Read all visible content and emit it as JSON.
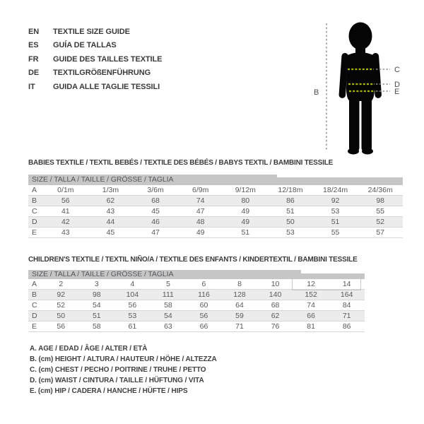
{
  "languages": [
    {
      "code": "EN",
      "label": "TEXTILE SIZE GUIDE"
    },
    {
      "code": "ES",
      "label": "GUÍA DE TALLAS"
    },
    {
      "code": "FR",
      "label": "GUIDE DES TAILLES TEXTILE"
    },
    {
      "code": "DE",
      "label": "TEXTILGRÖßENFÜHRUNG"
    },
    {
      "code": "IT",
      "label": "GUIDA ALLE TAGLIE TESSILI"
    }
  ],
  "figure": {
    "labels": {
      "height": "B",
      "chest": "C",
      "waist": "D",
      "hip": "E"
    },
    "colors": {
      "silhouette": "#050505",
      "measure_dash": "#a9b509",
      "guide_dash": "#8f8f8f"
    }
  },
  "babies_table": {
    "title": "BABIES TEXTILE / TEXTIL BEBÉS / TEXTILE DES BÉBÉS / BABYS TEXTIL  / BAMBINI TESSILE",
    "header": "SIZE / TALLA / TAILLE / GRÖSSE / TAGLIA",
    "rows": [
      {
        "label": "A",
        "values": [
          "0/1m",
          "1/3m",
          "3/6m",
          "6/9m",
          "9/12m",
          "12/18m",
          "18/24m",
          "24/36m"
        ]
      },
      {
        "label": "B",
        "values": [
          "56",
          "62",
          "68",
          "74",
          "80",
          "86",
          "92",
          "98"
        ]
      },
      {
        "label": "C",
        "values": [
          "41",
          "43",
          "45",
          "47",
          "49",
          "51",
          "53",
          "55"
        ]
      },
      {
        "label": "D",
        "values": [
          "42",
          "44",
          "46",
          "48",
          "49",
          "50",
          "51",
          "52"
        ]
      },
      {
        "label": "E",
        "values": [
          "43",
          "45",
          "47",
          "49",
          "51",
          "53",
          "55",
          "57"
        ]
      }
    ]
  },
  "children_table": {
    "title": "CHILDREN'S TEXTILE / TEXTIL NIÑO/A / TEXTILE DES ENFANTS / KINDERTEXTIL / BAMBINI TESSILE",
    "header": "SIZE / TALLA / TAILLE / GRÖSSE / TAGLIA",
    "rows": [
      {
        "label": "A",
        "values": [
          "2",
          "3",
          "4",
          "5",
          "6",
          "8",
          "10",
          "12",
          "14"
        ]
      },
      {
        "label": "B",
        "values": [
          "92",
          "98",
          "104",
          "111",
          "116",
          "128",
          "140",
          "152",
          "164"
        ]
      },
      {
        "label": "C",
        "values": [
          "52",
          "54",
          "56",
          "58",
          "60",
          "64",
          "68",
          "74",
          "84"
        ]
      },
      {
        "label": "D",
        "values": [
          "50",
          "51",
          "53",
          "54",
          "56",
          "59",
          "62",
          "66",
          "71"
        ]
      },
      {
        "label": "E",
        "values": [
          "56",
          "58",
          "61",
          "63",
          "66",
          "71",
          "76",
          "81",
          "86"
        ]
      }
    ]
  },
  "legend": [
    "A. AGE / EDAD / ÂGE / ALTER / ETÀ",
    "B. (cm) HEIGHT / ALTURA / HAUTEUR / HÖHE / ALTEZZA",
    "C. (cm) CHEST / PECHO / POITRINE / TRUHE / PETTO",
    "D. (cm) WAIST / CINTURA / TAILLE / HÜFTUNG / VITA",
    "E. (cm) HIP / CADERA / HANCHE / HÜFTE / HIPS"
  ]
}
